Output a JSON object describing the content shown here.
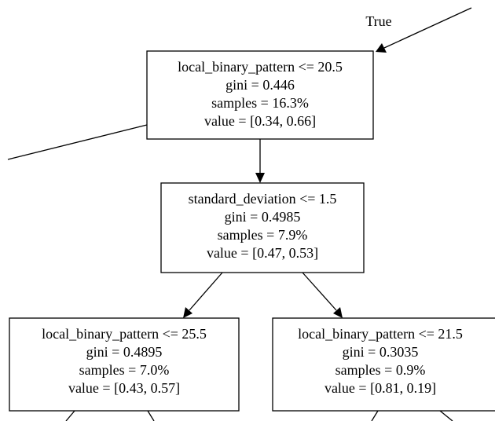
{
  "edge_label": "True",
  "nodes": [
    {
      "lines": [
        "local_binary_pattern <= 20.5",
        "gini = 0.446",
        "samples = 16.3%",
        "value = [0.34, 0.66]"
      ]
    },
    {
      "lines": [
        "standard_deviation <= 1.5",
        "gini = 0.4985",
        "samples = 7.9%",
        "value = [0.47, 0.53]"
      ]
    },
    {
      "lines": [
        "local_binary_pattern <= 25.5",
        "gini = 0.4895",
        "samples = 7.0%",
        "value = [0.43, 0.57]"
      ]
    },
    {
      "lines": [
        "local_binary_pattern <= 21.5",
        "gini = 0.3035",
        "samples = 0.9%",
        "value = [0.81, 0.19]"
      ]
    }
  ]
}
